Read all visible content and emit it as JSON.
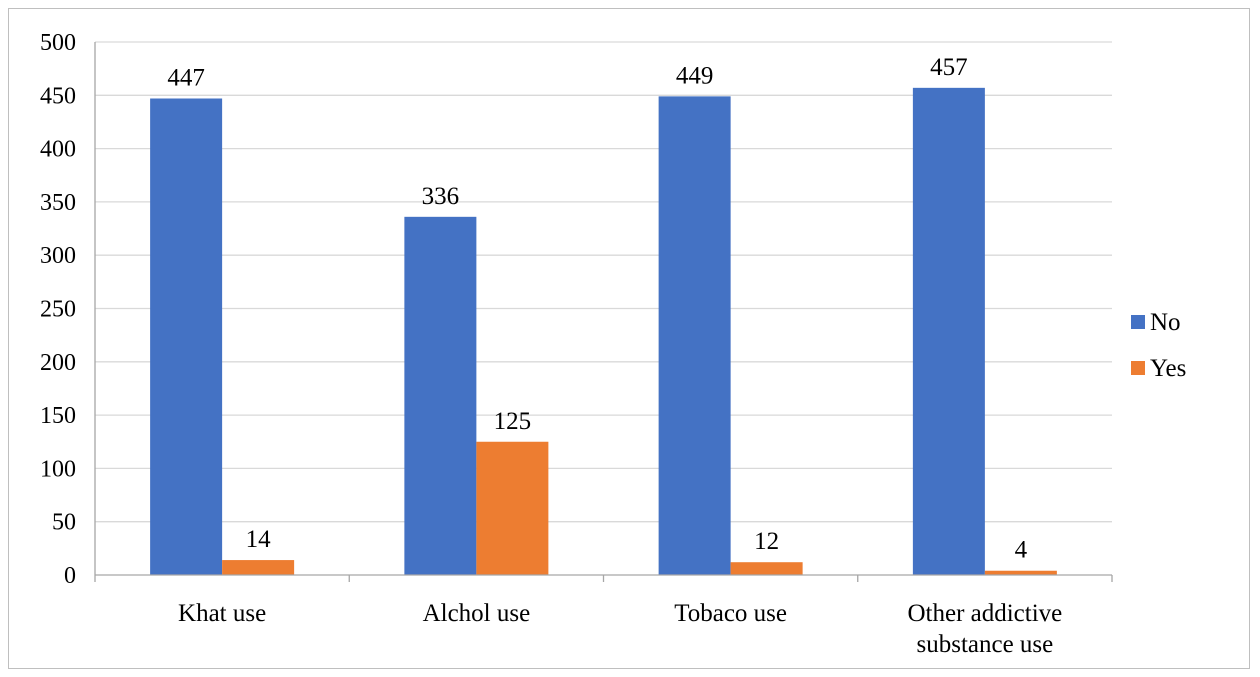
{
  "chart_data": {
    "type": "bar",
    "title": "",
    "xlabel": "",
    "ylabel": "",
    "categories": [
      [
        "Khat use"
      ],
      [
        "Alchol use"
      ],
      [
        "Tobaco use"
      ],
      [
        "Other addictive",
        "substance use"
      ]
    ],
    "series": [
      {
        "name": "No",
        "color": "#4472C4",
        "values": [
          447,
          336,
          449,
          457
        ]
      },
      {
        "name": "Yes",
        "color": "#ED7D31",
        "values": [
          14,
          125,
          12,
          4
        ]
      }
    ],
    "ylim": [
      0,
      500
    ],
    "yticks": [
      0,
      50,
      100,
      150,
      200,
      250,
      300,
      350,
      400,
      450,
      500
    ],
    "grid": true,
    "legend_position": "right",
    "colors": {
      "grid": "#d9d9d9",
      "axis": "#a6a6a6",
      "border": "#bfbfbf"
    }
  }
}
